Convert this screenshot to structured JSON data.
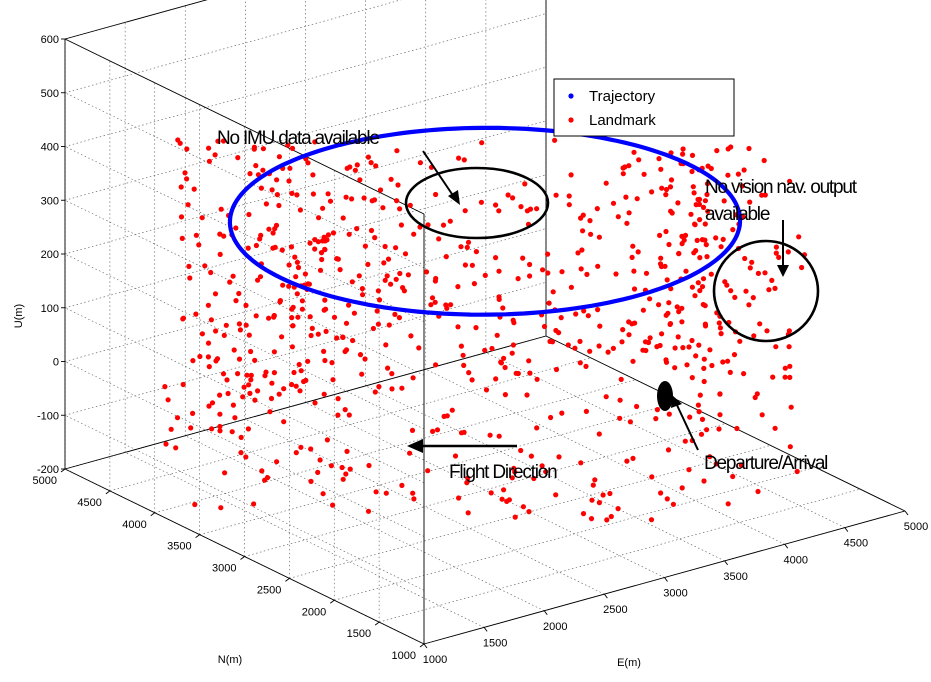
{
  "chart_data": {
    "type": "scatter",
    "dimensions": 3,
    "xlabel": "E(m)",
    "ylabel": "N(m)",
    "zlabel": "U(m)",
    "xlim": [
      1000,
      5000
    ],
    "ylim": [
      1000,
      5000
    ],
    "zlim": [
      -200,
      600
    ],
    "xticks": [
      "1000",
      "1500",
      "2000",
      "2500",
      "3000",
      "3500",
      "4000",
      "4500",
      "5000"
    ],
    "yticks": [
      "1000",
      "1500",
      "2000",
      "2500",
      "3000",
      "3500",
      "4000",
      "4500",
      "5000"
    ],
    "zticks": [
      "-200",
      "-100",
      "0",
      "100",
      "200",
      "300",
      "400",
      "500",
      "600"
    ],
    "grid": true,
    "legend_position": "top-right",
    "series": [
      {
        "name": "Trajectory",
        "color": "#0000ff",
        "marker": "dot",
        "shape": "circle",
        "center": {
          "E": 3000,
          "N": 3000
        },
        "radius": 1700,
        "altitude": 300
      },
      {
        "name": "Landmark",
        "color": "#ff0000",
        "marker": "dot",
        "count": 900,
        "distribution": "annulus around trajectory",
        "N_range": [
          1100,
          4900
        ],
        "U_range": [
          -150,
          500
        ]
      }
    ],
    "annotations": [
      {
        "text": "No IMU data available",
        "target": "trajectory segment",
        "marker": "ellipse"
      },
      {
        "text": "No vision nav. output",
        "text2": "available",
        "target": "trajectory segment",
        "marker": "ellipse"
      },
      {
        "text": "Departure/Arrival",
        "target": "trajectory start point",
        "marker": "filled ellipse"
      },
      {
        "text": "Flight Direction",
        "marker": "arrow"
      }
    ]
  }
}
